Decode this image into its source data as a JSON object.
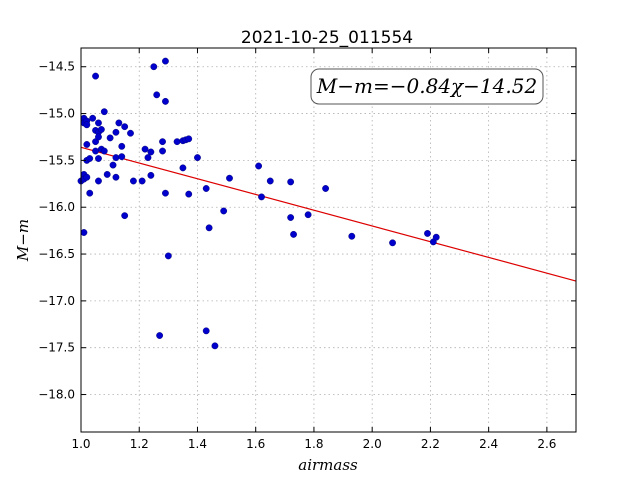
{
  "chart_data": {
    "type": "scatter",
    "title": "2021-10-25_011554",
    "xlabel": "airmass",
    "ylabel": "M−m",
    "xlim": [
      1.0,
      2.7
    ],
    "ylim": [
      -18.4,
      -14.3
    ],
    "x_ticks": [
      "1.0",
      "1.2",
      "1.4",
      "1.6",
      "1.8",
      "2.0",
      "2.2",
      "2.4",
      "2.6"
    ],
    "y_ticks": [
      "−14.5",
      "−15.0",
      "−15.5",
      "−16.0",
      "−16.5",
      "−17.0",
      "−17.5",
      "−18.0"
    ],
    "grid": true,
    "point_color": "#0000cc",
    "fit_color": "#dd0000",
    "annotation": "M−m=−0.84χ−14.52",
    "fit": {
      "slope": -0.84,
      "intercept": -14.52,
      "x_range": [
        1.0,
        2.7
      ]
    },
    "points": [
      {
        "x": 1.0,
        "y": -15.72
      },
      {
        "x": 1.01,
        "y": -15.05
      },
      {
        "x": 1.01,
        "y": -15.1
      },
      {
        "x": 1.01,
        "y": -15.65
      },
      {
        "x": 1.01,
        "y": -15.7
      },
      {
        "x": 1.01,
        "y": -16.27
      },
      {
        "x": 1.02,
        "y": -15.08
      },
      {
        "x": 1.02,
        "y": -15.12
      },
      {
        "x": 1.02,
        "y": -15.33
      },
      {
        "x": 1.02,
        "y": -15.5
      },
      {
        "x": 1.02,
        "y": -15.68
      },
      {
        "x": 1.03,
        "y": -15.48
      },
      {
        "x": 1.03,
        "y": -15.85
      },
      {
        "x": 1.04,
        "y": -15.05
      },
      {
        "x": 1.05,
        "y": -14.6
      },
      {
        "x": 1.05,
        "y": -15.18
      },
      {
        "x": 1.05,
        "y": -15.3
      },
      {
        "x": 1.05,
        "y": -15.4
      },
      {
        "x": 1.06,
        "y": -15.1
      },
      {
        "x": 1.06,
        "y": -15.2
      },
      {
        "x": 1.06,
        "y": -15.25
      },
      {
        "x": 1.06,
        "y": -15.48
      },
      {
        "x": 1.06,
        "y": -15.72
      },
      {
        "x": 1.07,
        "y": -15.17
      },
      {
        "x": 1.07,
        "y": -15.38
      },
      {
        "x": 1.08,
        "y": -14.98
      },
      {
        "x": 1.08,
        "y": -15.4
      },
      {
        "x": 1.09,
        "y": -15.65
      },
      {
        "x": 1.1,
        "y": -15.26
      },
      {
        "x": 1.11,
        "y": -15.55
      },
      {
        "x": 1.12,
        "y": -15.2
      },
      {
        "x": 1.12,
        "y": -15.47
      },
      {
        "x": 1.12,
        "y": -15.68
      },
      {
        "x": 1.13,
        "y": -15.1
      },
      {
        "x": 1.14,
        "y": -15.35
      },
      {
        "x": 1.14,
        "y": -15.46
      },
      {
        "x": 1.15,
        "y": -15.14
      },
      {
        "x": 1.15,
        "y": -16.09
      },
      {
        "x": 1.17,
        "y": -15.21
      },
      {
        "x": 1.18,
        "y": -15.72
      },
      {
        "x": 1.21,
        "y": -15.72
      },
      {
        "x": 1.22,
        "y": -15.38
      },
      {
        "x": 1.23,
        "y": -15.47
      },
      {
        "x": 1.24,
        "y": -15.41
      },
      {
        "x": 1.24,
        "y": -15.66
      },
      {
        "x": 1.25,
        "y": -14.5
      },
      {
        "x": 1.26,
        "y": -14.8
      },
      {
        "x": 1.27,
        "y": -17.37
      },
      {
        "x": 1.28,
        "y": -15.3
      },
      {
        "x": 1.28,
        "y": -15.4
      },
      {
        "x": 1.29,
        "y": -14.44
      },
      {
        "x": 1.29,
        "y": -14.87
      },
      {
        "x": 1.29,
        "y": -15.85
      },
      {
        "x": 1.3,
        "y": -16.52
      },
      {
        "x": 1.33,
        "y": -15.3
      },
      {
        "x": 1.35,
        "y": -15.29
      },
      {
        "x": 1.35,
        "y": -15.58
      },
      {
        "x": 1.36,
        "y": -15.28
      },
      {
        "x": 1.37,
        "y": -15.27
      },
      {
        "x": 1.37,
        "y": -15.86
      },
      {
        "x": 1.4,
        "y": -15.47
      },
      {
        "x": 1.43,
        "y": -15.8
      },
      {
        "x": 1.43,
        "y": -17.32
      },
      {
        "x": 1.44,
        "y": -16.22
      },
      {
        "x": 1.46,
        "y": -17.48
      },
      {
        "x": 1.49,
        "y": -16.04
      },
      {
        "x": 1.51,
        "y": -15.69
      },
      {
        "x": 1.61,
        "y": -15.56
      },
      {
        "x": 1.62,
        "y": -15.89
      },
      {
        "x": 1.65,
        "y": -15.72
      },
      {
        "x": 1.72,
        "y": -15.73
      },
      {
        "x": 1.72,
        "y": -16.11
      },
      {
        "x": 1.73,
        "y": -16.29
      },
      {
        "x": 1.78,
        "y": -16.08
      },
      {
        "x": 1.84,
        "y": -15.8
      },
      {
        "x": 1.93,
        "y": -16.31
      },
      {
        "x": 2.07,
        "y": -16.38
      },
      {
        "x": 2.19,
        "y": -16.28
      },
      {
        "x": 2.21,
        "y": -16.37
      },
      {
        "x": 2.22,
        "y": -16.32
      }
    ]
  }
}
